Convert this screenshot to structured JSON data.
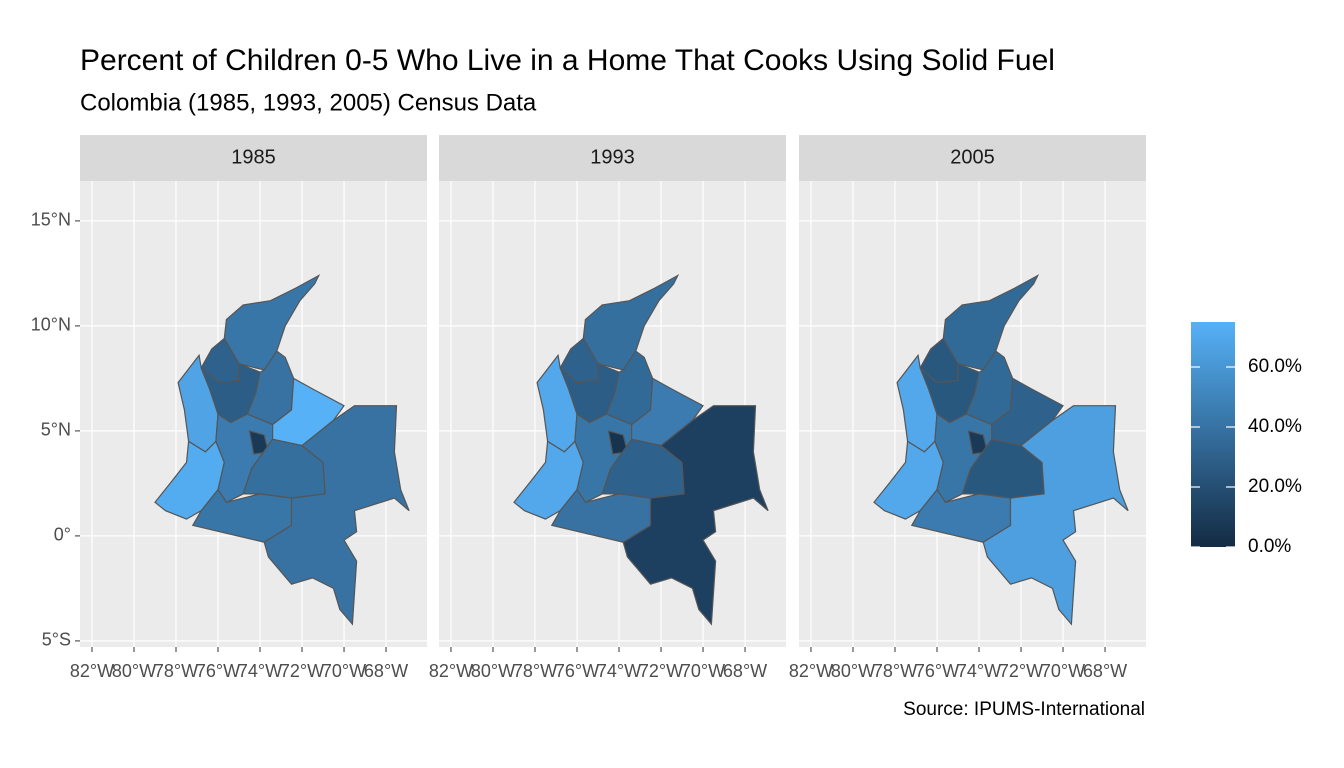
{
  "chart_data": {
    "type": "choropleth",
    "title": "Percent of Children 0-5 Who Live in a Home That Cooks Using Solid Fuel",
    "subtitle": "Colombia (1985, 1993, 2005) Census Data",
    "caption": "Source: IPUMS-International",
    "facets": [
      {
        "label": "1985",
        "values": [
          42,
          30,
          68,
          28,
          40,
          72,
          45,
          8,
          75,
          38,
          42,
          40
        ]
      },
      {
        "label": "1993",
        "values": [
          38,
          30,
          70,
          28,
          35,
          70,
          42,
          5,
          45,
          30,
          40,
          12
        ]
      },
      {
        "label": "2005",
        "values": [
          35,
          25,
          70,
          25,
          35,
          70,
          42,
          8,
          30,
          25,
          45,
          65
        ]
      }
    ],
    "xlim": [
      -82.57,
      -66.05
    ],
    "ylim": [
      -5.29,
      16.9
    ],
    "xticks": [
      {
        "value": -82,
        "label": "82°W"
      },
      {
        "value": -80,
        "label": "80°W"
      },
      {
        "value": -78,
        "label": "78°W"
      },
      {
        "value": -76,
        "label": "76°W"
      },
      {
        "value": -74,
        "label": "74°W"
      },
      {
        "value": -72,
        "label": "72°W"
      },
      {
        "value": -70,
        "label": "70°W"
      },
      {
        "value": -68,
        "label": "68°W"
      }
    ],
    "yticks": [
      {
        "value": -5,
        "label": "5°S"
      },
      {
        "value": 0,
        "label": "0°"
      },
      {
        "value": 5,
        "label": "5°N"
      },
      {
        "value": 10,
        "label": "10°N"
      },
      {
        "value": 15,
        "label": "15°N"
      }
    ],
    "grid": true,
    "colorscale": [
      "#132B43",
      "#56B1F7"
    ],
    "clim": [
      0,
      75
    ],
    "legend_ticks": [
      {
        "value": 0,
        "label": "0.0%"
      },
      {
        "value": 20,
        "label": "20.0%"
      },
      {
        "value": 40,
        "label": "40.0%"
      },
      {
        "value": 60,
        "label": "60.0%"
      }
    ],
    "legend_position": "right"
  }
}
